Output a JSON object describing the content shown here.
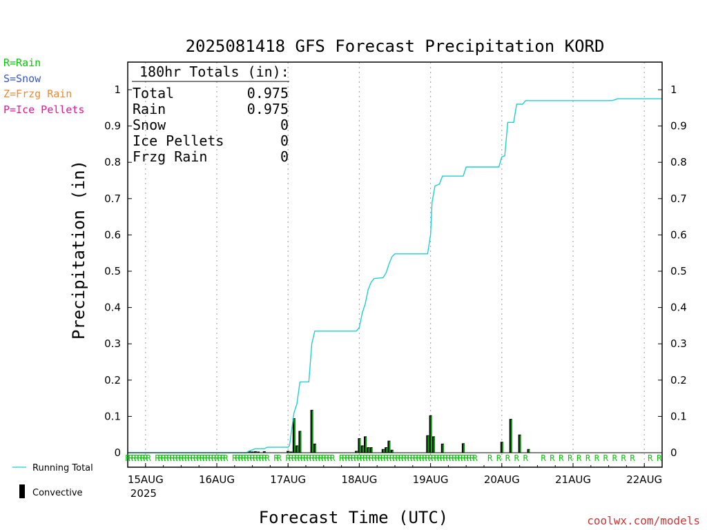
{
  "chart_data": {
    "type": "bar",
    "title": "2025081418 GFS Forecast Precipitation KORD",
    "ylabel": "Precipitation (in)",
    "xlabel": "Forecast Time (UTC)",
    "ylim": [
      0,
      1.05
    ],
    "yticks": [
      0,
      0.1,
      0.2,
      0.3,
      0.4,
      0.5,
      0.6,
      0.7,
      0.8,
      0.9,
      1
    ],
    "ytick_labels": [
      "0",
      "0.1",
      "0.2",
      "0.3",
      "0.4",
      "0.5",
      "0.6",
      "0.7",
      "0.8",
      "0.9",
      "1"
    ],
    "x_unit": "hours after 2025-08-14 18 UTC",
    "xlim": [
      0,
      180
    ],
    "x_date_ticks": [
      {
        "hour": 6,
        "label": "15AUG",
        "sublabel": "2025"
      },
      {
        "hour": 30,
        "label": "16AUG",
        "sublabel": ""
      },
      {
        "hour": 54,
        "label": "17AUG",
        "sublabel": ""
      },
      {
        "hour": 78,
        "label": "18AUG",
        "sublabel": ""
      },
      {
        "hour": 102,
        "label": "19AUG",
        "sublabel": ""
      },
      {
        "hour": 126,
        "label": "20AUG",
        "sublabel": ""
      },
      {
        "hour": 150,
        "label": "21AUG",
        "sublabel": ""
      },
      {
        "hour": 174,
        "label": "22AUG",
        "sublabel": ""
      }
    ],
    "grid": "vertical-dotted",
    "series": [
      {
        "name": "Running Total",
        "kind": "line",
        "color": "#1fcfcf",
        "points": [
          [
            0,
            0
          ],
          [
            40,
            0
          ],
          [
            41,
            0.005
          ],
          [
            42,
            0.008
          ],
          [
            43,
            0.011
          ],
          [
            46,
            0.011
          ],
          [
            47,
            0.015
          ],
          [
            54,
            0.015
          ],
          [
            54.5,
            0.02
          ],
          [
            55,
            0.05
          ],
          [
            56,
            0.11
          ],
          [
            57,
            0.135
          ],
          [
            58,
            0.195
          ],
          [
            61,
            0.195
          ],
          [
            62,
            0.3
          ],
          [
            63,
            0.335
          ],
          [
            77,
            0.335
          ],
          [
            78,
            0.345
          ],
          [
            79,
            0.385
          ],
          [
            80,
            0.41
          ],
          [
            81,
            0.45
          ],
          [
            82,
            0.47
          ],
          [
            83,
            0.48
          ],
          [
            86,
            0.482
          ],
          [
            87,
            0.495
          ],
          [
            88,
            0.52
          ],
          [
            89,
            0.54
          ],
          [
            90,
            0.548
          ],
          [
            101,
            0.548
          ],
          [
            102,
            0.6
          ],
          [
            102.5,
            0.69
          ],
          [
            103.5,
            0.735
          ],
          [
            105,
            0.74
          ],
          [
            106,
            0.762
          ],
          [
            113,
            0.762
          ],
          [
            114,
            0.787
          ],
          [
            125,
            0.787
          ],
          [
            126,
            0.815
          ],
          [
            127,
            0.818
          ],
          [
            128,
            0.91
          ],
          [
            130,
            0.91
          ],
          [
            131,
            0.96
          ],
          [
            133,
            0.96
          ],
          [
            134,
            0.97
          ],
          [
            163,
            0.97
          ],
          [
            164,
            0.972
          ],
          [
            165,
            0.975
          ],
          [
            180,
            0.975
          ]
        ]
      },
      {
        "name": "Convective",
        "kind": "bar",
        "color": "#000000",
        "fill_color": "#00a000",
        "x_hours": [
          41,
          42,
          43,
          44,
          46,
          54,
          55,
          56,
          57,
          58,
          62,
          63,
          77,
          78,
          79,
          80,
          81,
          82,
          86,
          87,
          88,
          89,
          101,
          102,
          103,
          106,
          113,
          126,
          129,
          132,
          135
        ],
        "values": [
          0.005,
          0.003,
          0.004,
          0.003,
          0.004,
          0.005,
          0.003,
          0.095,
          0.02,
          0.06,
          0.118,
          0.025,
          0.005,
          0.04,
          0.02,
          0.045,
          0.015,
          0.015,
          0.01,
          0.015,
          0.033,
          0.008,
          0.048,
          0.103,
          0.045,
          0.025,
          0.026,
          0.03,
          0.093,
          0.05,
          0.01
        ]
      }
    ],
    "ptype_markers": {
      "hours": [
        0,
        1,
        2,
        3,
        4,
        5,
        6,
        7,
        10,
        11,
        12,
        13,
        14,
        15,
        16,
        17,
        18,
        19,
        20,
        21,
        22,
        23,
        24,
        25,
        26,
        27,
        28,
        29,
        30,
        31,
        32,
        33,
        36,
        37,
        38,
        39,
        40,
        41,
        42,
        43,
        44,
        45,
        46,
        47,
        50,
        51,
        54,
        55,
        56,
        57,
        58,
        59,
        60,
        61,
        62,
        63,
        64,
        65,
        66,
        67,
        68,
        69,
        72,
        73,
        74,
        75,
        76,
        77,
        78,
        79,
        80,
        81,
        82,
        83,
        84,
        85,
        86,
        87,
        88,
        89,
        90,
        91,
        92,
        93,
        94,
        95,
        96,
        97,
        98,
        99,
        100,
        101,
        102,
        103,
        104,
        105,
        106,
        107,
        108,
        109,
        110,
        111,
        112,
        113,
        114,
        115,
        116,
        117,
        122,
        125,
        128,
        131,
        134,
        140,
        143,
        146,
        149,
        152,
        155,
        158,
        161,
        164,
        167,
        170,
        176,
        179
      ],
      "letter": "R",
      "color": "#00cc00"
    },
    "totals": {
      "header": "180hr Totals (in):",
      "rows": [
        {
          "label": "Total",
          "value": "0.975"
        },
        {
          "label": "Rain",
          "value": "0.975"
        },
        {
          "label": "Snow",
          "value": "0"
        },
        {
          "label": "Ice Pellets",
          "value": "0"
        },
        {
          "label": "Frzg Rain",
          "value": "0"
        }
      ]
    }
  },
  "ptype_legend": [
    {
      "text": "R=Rain",
      "color": "#00cc00"
    },
    {
      "text": "S=Snow",
      "color": "#3355dd"
    },
    {
      "text": "Z=Frzg Rain",
      "color": "#ee8833"
    },
    {
      "text": "P=Ice Pellets",
      "color": "#ee1199"
    }
  ],
  "series_legend": {
    "running_total": "Running Total",
    "convective": "Convective"
  },
  "footer": {
    "link_text": "coolwx.com/models",
    "link_color": "#cc3333"
  }
}
